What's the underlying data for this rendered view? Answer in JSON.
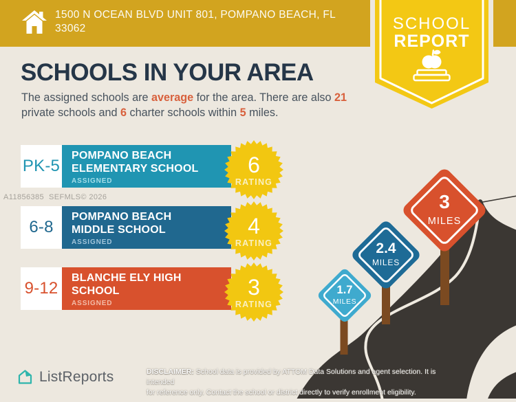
{
  "header": {
    "address_line1": "1500 N OCEAN BLVD UNIT 801, POMPANO BEACH, FL",
    "address_line2": "33062",
    "badge_line1": "SCHOOL",
    "badge_line2": "REPORT"
  },
  "title": "SCHOOLS IN YOUR AREA",
  "subtitle": {
    "s1": "The assigned schools are ",
    "h1": "average",
    "s2": " for the area. There are also ",
    "h2": "21",
    "s3": " private schools and ",
    "h3": "6",
    "s4": " charter schools within ",
    "h4": "5",
    "s5": " miles."
  },
  "watermark": "A11856385  SEFMLS© 2026",
  "schools": [
    {
      "grades": "PK-5",
      "name_line1": "POMPANO BEACH",
      "name_line2": "ELEMENTARY SCHOOL",
      "status": "ASSIGNED",
      "rating": "6",
      "rating_label": "RATING",
      "bar_color": "#2095B2",
      "assigned_color": "#A5DEE9"
    },
    {
      "grades": "6-8",
      "name_line1": "POMPANO BEACH",
      "name_line2": "MIDDLE SCHOOL",
      "status": "ASSIGNED",
      "rating": "4",
      "rating_label": "RATING",
      "bar_color": "#20688F",
      "assigned_color": "#A3C6DB"
    },
    {
      "grades": "9-12",
      "name_line1": "BLANCHE ELY HIGH",
      "name_line2": "SCHOOL",
      "status": "ASSIGNED",
      "rating": "3",
      "rating_label": "RATING",
      "bar_color": "#D8512D",
      "assigned_color": "#F3BCA9"
    }
  ],
  "distance_signs": [
    {
      "value": "1.7",
      "label": "MILES",
      "color": "#3FAACE"
    },
    {
      "value": "2.4",
      "label": "MILES",
      "color": "#1E6B96"
    },
    {
      "value": "3",
      "label": "MILES",
      "color": "#D8512D"
    }
  ],
  "footer": {
    "brand": "ListReports",
    "disclaimer_label": "DISCLAIMER:",
    "disclaimer_line1": " School data is provided by ATTOM Data Solutions and agent selection. It is intended",
    "disclaimer_line2": "for reference only. Contact the school or district directly to verify enrollment eligibility."
  },
  "colors": {
    "header_gold": "#D2A41F",
    "badge_yellow": "#F3C814",
    "background": "#EDE8DF",
    "title_navy": "#253648",
    "accent_orange": "#D8603C",
    "starburst_yellow": "#F2C711",
    "road_dark": "#3B3733",
    "post_brown": "#7B4A21",
    "logo_teal": "#2EB5AC"
  }
}
